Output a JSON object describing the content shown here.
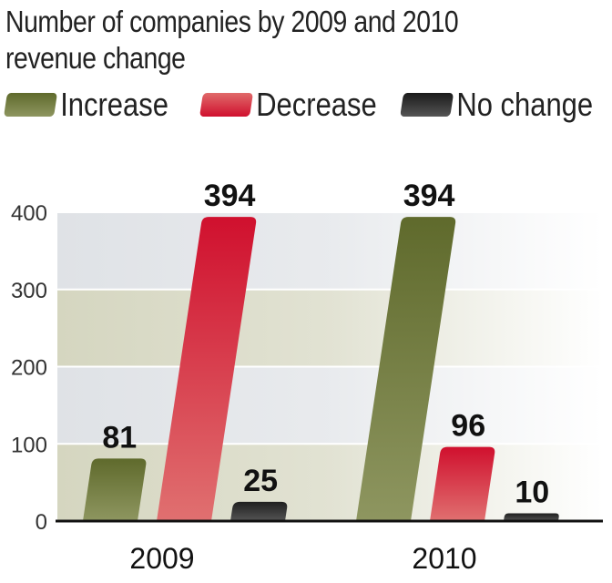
{
  "chart_data": {
    "type": "bar",
    "title": "Number of companies by 2009 and 2010 revenue change",
    "title_lines": [
      "Number of companies by 2009 and 2010",
      "revenue change"
    ],
    "xlabel": "",
    "ylabel": "",
    "categories": [
      "2009",
      "2010"
    ],
    "series": [
      {
        "name": "Increase",
        "values": [
          81,
          394
        ],
        "color": "#5f6a2c",
        "color_light": "#8e9660"
      },
      {
        "name": "Decrease",
        "values": [
          394,
          96
        ],
        "color": "#d0102e",
        "color_light": "#e07070"
      },
      {
        "name": "No change",
        "values": [
          25,
          10
        ],
        "color": "#1f1f1f",
        "color_light": "#555555"
      }
    ],
    "ylim": [
      0,
      400
    ],
    "yticks": [
      0,
      100,
      200,
      300,
      400
    ],
    "ytick_labels": [
      "0",
      "100",
      "200",
      "300",
      "400"
    ],
    "data_labels": true,
    "grid": true,
    "legend_position": "top",
    "band_colors": [
      "#d5d6c0",
      "#dfe2e6"
    ]
  }
}
